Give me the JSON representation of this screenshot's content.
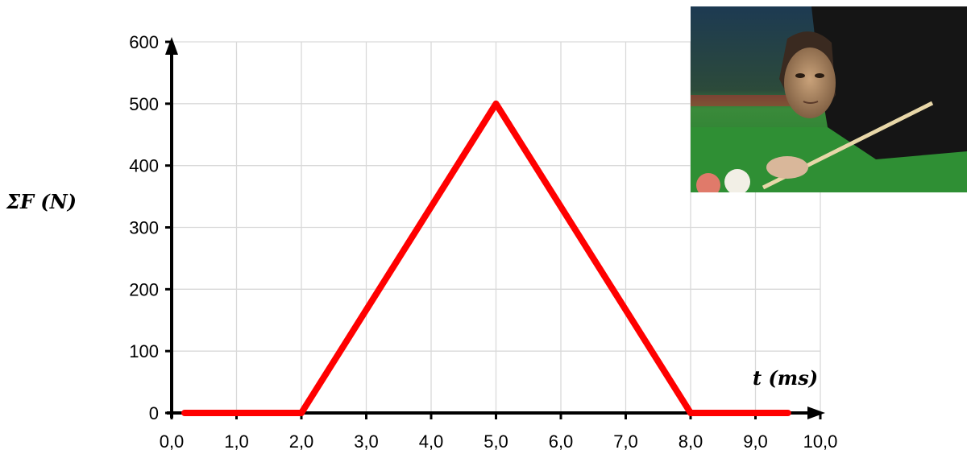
{
  "chart_data": {
    "type": "line",
    "title": "",
    "xlabel": "t (ms)",
    "ylabel": "ΣF (N)",
    "xlim": [
      0,
      10
    ],
    "ylim": [
      0,
      600
    ],
    "x_ticks": [
      "0,0",
      "1,0",
      "2,0",
      "3,0",
      "4,0",
      "5,0",
      "6,0",
      "7,0",
      "8,0",
      "9,0",
      "10,0"
    ],
    "y_ticks": [
      "0",
      "100",
      "200",
      "300",
      "400",
      "500",
      "600"
    ],
    "grid": true,
    "series": [
      {
        "color": "#ff0000",
        "x": [
          0.2,
          2.0,
          5.0,
          8.0,
          9.5
        ],
        "y": [
          0,
          0,
          500,
          0,
          0
        ]
      }
    ]
  },
  "photo": {
    "description_icon": "snooker-player-photo"
  }
}
